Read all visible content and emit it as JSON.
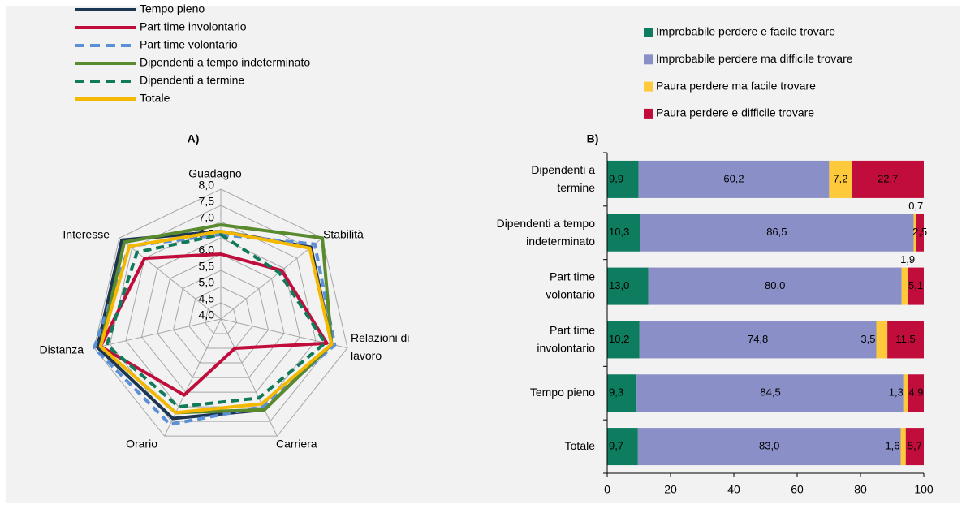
{
  "chart_data": [
    {
      "type": "radar",
      "title": "A)",
      "categories": [
        "Guadagno",
        "Stabilità",
        "Relazioni di lavoro",
        "Carriera",
        "Orario",
        "Distanza",
        "Interesse"
      ],
      "rlim": [
        4,
        8
      ],
      "rticks": [
        {
          "value": 4,
          "label": "4,0"
        },
        {
          "value": 4.5,
          "label": "4,5"
        },
        {
          "value": 5,
          "label": "5,0"
        },
        {
          "value": 5.5,
          "label": "5,5"
        },
        {
          "value": 6,
          "label": "6,0"
        },
        {
          "value": 6.5,
          "label": "6,5"
        },
        {
          "value": 7,
          "label": "7,0"
        },
        {
          "value": 7.5,
          "label": "7,5"
        },
        {
          "value": 8,
          "label": "8,0"
        }
      ],
      "grid": true,
      "series": [
        {
          "name": "Tempo pieno",
          "color": "#1c3550",
          "dashed": false,
          "values": [
            6.7,
            7.55,
            7.5,
            7.1,
            7.4,
            7.9,
            7.9
          ]
        },
        {
          "name": "Part time involontario",
          "color": "#c00d3b",
          "dashed": false,
          "values": [
            6.0,
            6.4,
            7.35,
            5.0,
            6.6,
            7.8,
            7.0
          ]
        },
        {
          "name": "Part time volontario",
          "color": "#5b8fd6",
          "dashed": true,
          "values": [
            6.6,
            7.7,
            7.6,
            7.0,
            7.6,
            8.0,
            7.6
          ]
        },
        {
          "name": "Dipendenti a tempo indeterminato",
          "color": "#5a8a2e",
          "dashed": false,
          "values": [
            6.9,
            8.0,
            7.5,
            7.1,
            7.2,
            7.8,
            7.8
          ]
        },
        {
          "name": "Dipendenti a termine",
          "color": "#117a5a",
          "dashed": true,
          "values": [
            6.6,
            6.3,
            7.3,
            6.7,
            7.0,
            7.6,
            7.3
          ]
        },
        {
          "name": "Totale",
          "color": "#f5b800",
          "dashed": false,
          "values": [
            6.7,
            7.5,
            7.5,
            6.9,
            7.2,
            7.8,
            7.6
          ]
        }
      ]
    },
    {
      "type": "bar",
      "orientation": "horizontal",
      "stacked": true,
      "title": "B)",
      "categories": [
        "Dipendenti a termine",
        "Dipendenti a tempo indeterminato",
        "Part time volontario",
        "Part time involontario",
        "Tempo pieno",
        "Totale"
      ],
      "xlim": [
        0,
        100
      ],
      "xticks": [
        0,
        20,
        40,
        60,
        80,
        100
      ],
      "series": [
        {
          "name": "Improbabile perdere e facile trovare",
          "color": "#0e7c5e",
          "values": [
            9.9,
            10.3,
            13.0,
            10.2,
            9.3,
            9.7
          ],
          "value_labels": [
            "9,9",
            "10,3",
            "13,0",
            "10,2",
            "9,3",
            "9,7"
          ]
        },
        {
          "name": "Improbabile perdere ma difficile trovare",
          "color": "#8b8fc7",
          "values": [
            60.2,
            86.5,
            80.0,
            74.8,
            84.5,
            83.0
          ],
          "value_labels": [
            "60,2",
            "86,5",
            "80,0",
            "74,8",
            "84,5",
            "83,0"
          ]
        },
        {
          "name": "Paura perdere ma facile trovare",
          "color": "#ffc93c",
          "values": [
            7.2,
            0.7,
            1.9,
            3.5,
            1.3,
            1.6
          ],
          "value_labels": [
            "7,2",
            "0,7",
            "1,9",
            "3,5",
            "1,3",
            "1,6"
          ]
        },
        {
          "name": "Paura perdere e difficile trovare",
          "color": "#c00d3b",
          "values": [
            22.7,
            2.5,
            5.1,
            11.5,
            4.9,
            5.7
          ],
          "value_labels": [
            "22,7",
            "2,5",
            "5,1",
            "11,5",
            "4,9",
            "5,7"
          ]
        }
      ]
    }
  ]
}
